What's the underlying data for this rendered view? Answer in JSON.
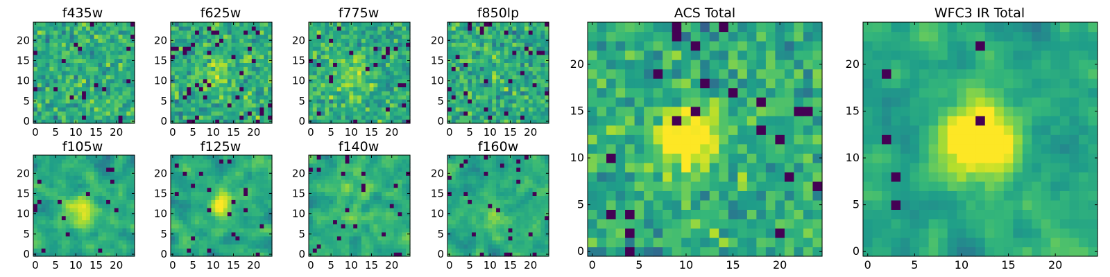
{
  "chart_data": [
    {
      "type": "heatmap",
      "title": "f435w",
      "xticks": [
        "0",
        "5",
        "10",
        "15",
        "20"
      ],
      "yticks": [
        "0",
        "5",
        "10",
        "15",
        "20"
      ],
      "xlim": [
        0,
        24
      ],
      "ylim": [
        0,
        24
      ],
      "grid": false,
      "colormap": "viridis",
      "data_note": "noise",
      "seed": 11
    },
    {
      "type": "heatmap",
      "title": "f625w",
      "xticks": [
        "0",
        "5",
        "10",
        "15",
        "20"
      ],
      "yticks": [
        "0",
        "5",
        "10",
        "15",
        "20"
      ],
      "xlim": [
        0,
        24
      ],
      "ylim": [
        0,
        24
      ],
      "grid": false,
      "colormap": "viridis",
      "data_note": "noise with faint central source",
      "seed": 23
    },
    {
      "type": "heatmap",
      "title": "f775w",
      "xticks": [
        "0",
        "5",
        "10",
        "15",
        "20"
      ],
      "yticks": [
        "0",
        "5",
        "10",
        "15",
        "20"
      ],
      "xlim": [
        0,
        24
      ],
      "ylim": [
        0,
        24
      ],
      "grid": false,
      "colormap": "viridis",
      "data_note": "noise with faint central source",
      "seed": 37
    },
    {
      "type": "heatmap",
      "title": "f850lp",
      "xticks": [
        "0",
        "5",
        "10",
        "15",
        "20"
      ],
      "yticks": [
        "0",
        "5",
        "10",
        "15",
        "20"
      ],
      "xlim": [
        0,
        24
      ],
      "ylim": [
        0,
        24
      ],
      "grid": false,
      "colormap": "viridis",
      "data_note": "noise",
      "seed": 41
    },
    {
      "type": "heatmap",
      "title": "f105w",
      "xticks": [
        "0",
        "5",
        "10",
        "15",
        "20"
      ],
      "yticks": [
        "0",
        "5",
        "10",
        "15",
        "20"
      ],
      "xlim": [
        0,
        24
      ],
      "ylim": [
        0,
        24
      ],
      "grid": false,
      "colormap": "viridis",
      "data_note": "smoothed noise with central source",
      "seed": 53
    },
    {
      "type": "heatmap",
      "title": "f125w",
      "xticks": [
        "0",
        "5",
        "10",
        "15",
        "20"
      ],
      "yticks": [
        "0",
        "5",
        "10",
        "15",
        "20"
      ],
      "xlim": [
        0,
        24
      ],
      "ylim": [
        0,
        24
      ],
      "grid": false,
      "colormap": "viridis",
      "data_note": "smoothed noise with central source",
      "seed": 67
    },
    {
      "type": "heatmap",
      "title": "f140w",
      "xticks": [
        "0",
        "5",
        "10",
        "15",
        "20"
      ],
      "yticks": [
        "0",
        "5",
        "10",
        "15",
        "20"
      ],
      "xlim": [
        0,
        24
      ],
      "ylim": [
        0,
        24
      ],
      "grid": false,
      "colormap": "viridis",
      "data_note": "smoothed noise",
      "seed": 71
    },
    {
      "type": "heatmap",
      "title": "f160w",
      "xticks": [
        "0",
        "5",
        "10",
        "15",
        "20"
      ],
      "yticks": [
        "0",
        "5",
        "10",
        "15",
        "20"
      ],
      "xlim": [
        0,
        24
      ],
      "ylim": [
        0,
        24
      ],
      "grid": false,
      "colormap": "viridis",
      "data_note": "smoothed noise",
      "seed": 83
    },
    {
      "type": "heatmap",
      "title": "ACS Total",
      "xticks": [
        "0",
        "5",
        "10",
        "15",
        "20"
      ],
      "yticks": [
        "0",
        "5",
        "10",
        "15",
        "20"
      ],
      "xlim": [
        0,
        24
      ],
      "ylim": [
        0,
        24
      ],
      "grid": false,
      "colormap": "viridis",
      "data_note": "bright source near (10,12)",
      "seed": 97
    },
    {
      "type": "heatmap",
      "title": "WFC3 IR Total",
      "xticks": [
        "0",
        "5",
        "10",
        "15",
        "20"
      ],
      "yticks": [
        "0",
        "5",
        "10",
        "15",
        "20"
      ],
      "xlim": [
        0,
        24
      ],
      "ylim": [
        0,
        24
      ],
      "grid": false,
      "colormap": "viridis",
      "data_note": "bright source near (12,12)",
      "seed": 101
    }
  ]
}
